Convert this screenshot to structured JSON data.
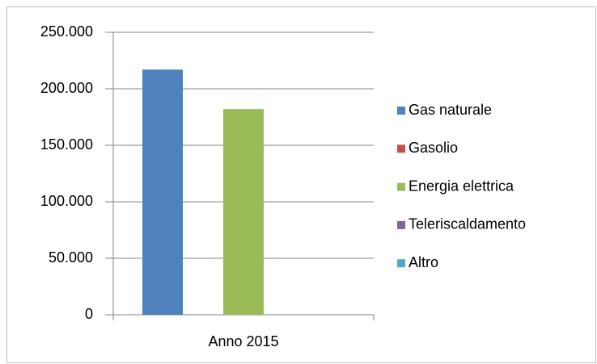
{
  "chart_data": {
    "type": "bar",
    "categories": [
      "Anno 2015"
    ],
    "series": [
      {
        "name": "Gas naturale",
        "color": "#4f81bd",
        "values": [
          217000
        ]
      },
      {
        "name": "Gasolio",
        "color": "#c0504d",
        "values": [
          0
        ]
      },
      {
        "name": "Energia elettrica",
        "color": "#9bbb59",
        "values": [
          182000
        ]
      },
      {
        "name": "Teleriscaldamento",
        "color": "#8064a2",
        "values": [
          0
        ]
      },
      {
        "name": "Altro",
        "color": "#4bacc6",
        "values": [
          0
        ]
      }
    ],
    "ylim": [
      0,
      250000
    ],
    "yticks": [
      0,
      {
        "value": 50000,
        "label": "50.000"
      },
      {
        "value": 100000,
        "label": "100.000"
      },
      {
        "value": 150000,
        "label": "150.000"
      },
      {
        "value": 200000,
        "label": "200.000"
      },
      {
        "value": 250000,
        "label": "250.000"
      }
    ],
    "grid": true,
    "legend": "right"
  }
}
